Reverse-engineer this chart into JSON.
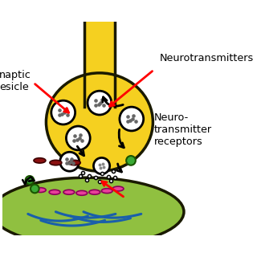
{
  "bg_color": "#ffffff",
  "axon_color": "#f5d020",
  "axon_outline": "#1a1a00",
  "dendrite_color": "#90c040",
  "dendrite_outline": "#1a1a00",
  "vesicle_color": "#ffffff",
  "vesicle_outline": "#000000",
  "receptor_color_pink": "#e8409a",
  "receptor_color_dark": "#8b1010",
  "receptor_color_green": "#3aaa35",
  "blue_fiber": "#1a5faa",
  "text_labels": {
    "neurotransmitters": "Neurotransmitters",
    "synaptic_vesicle": "naptic\nesicle",
    "neuro_receptors": "Neuro-\ntransmitter\nreceptors"
  }
}
